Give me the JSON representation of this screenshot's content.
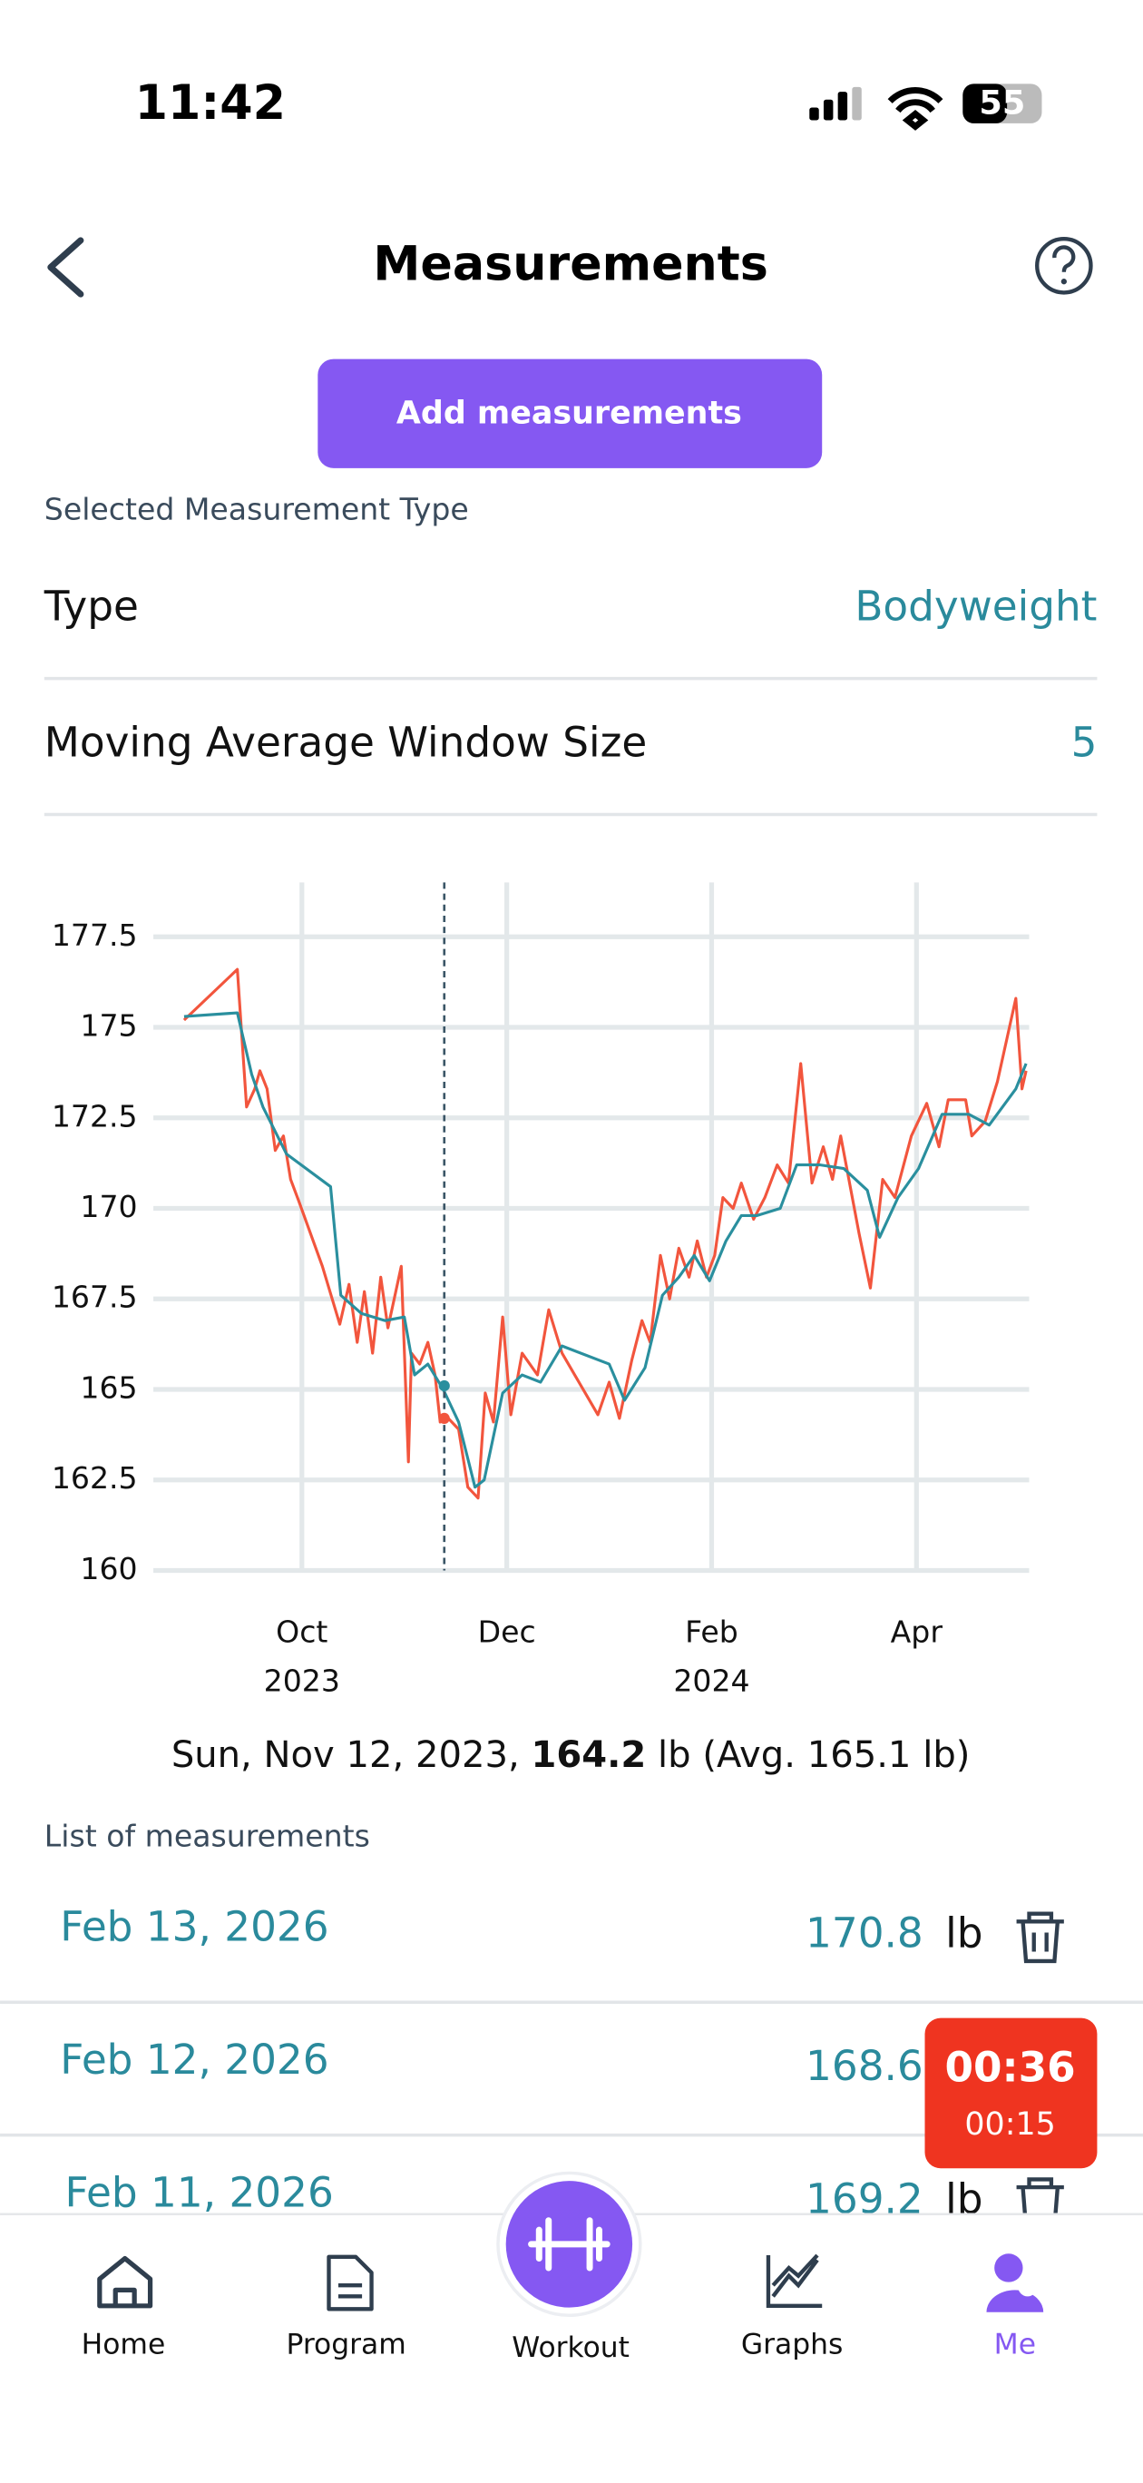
{
  "status_bar": {
    "time": "11:42",
    "battery": "55"
  },
  "header": {
    "title": "Measurements"
  },
  "add_button": "Add measurements",
  "selected_label": "Selected Measurement Type",
  "type_row": {
    "label": "Type",
    "value": "Bodyweight"
  },
  "window_row": {
    "label": "Moving Average Window Size",
    "value": 5
  },
  "chart_data": {
    "type": "line",
    "xlim": [
      8.55,
      17.1
    ],
    "ylim": [
      160,
      179
    ],
    "xticks": [
      {
        "value": 10,
        "label": "Oct",
        "year": "2023"
      },
      {
        "value": 12,
        "label": "Dec"
      },
      {
        "value": 14,
        "label": "Feb",
        "year": "2024"
      },
      {
        "value": 16,
        "label": "Apr"
      }
    ],
    "yticks": [
      160,
      162.5,
      165,
      167.5,
      170,
      172.5,
      175,
      177.5
    ],
    "grid": true,
    "cursor_x": 11.39,
    "series": [
      {
        "color": "#f2553d",
        "x": [
          8.85,
          9.37,
          9.46,
          9.54,
          9.59,
          9.66,
          9.74,
          9.82,
          9.89,
          9.97,
          10.2,
          10.37,
          10.46,
          10.54,
          10.61,
          10.69,
          10.77,
          10.84,
          10.97,
          11.04,
          11.07,
          11.15,
          11.23,
          11.3,
          11.35,
          11.43,
          11.53,
          11.62,
          11.72,
          11.79,
          11.87,
          11.96,
          12.04,
          12.15,
          12.3,
          12.41,
          12.54,
          12.89,
          13.0,
          13.1,
          13.22,
          13.32,
          13.4,
          13.5,
          13.59,
          13.68,
          13.78,
          13.86,
          13.95,
          14.03,
          14.11,
          14.21,
          14.29,
          14.41,
          14.52,
          14.64,
          14.75,
          14.87,
          14.98,
          15.09,
          15.18,
          15.26,
          15.44,
          15.55,
          15.67,
          15.79,
          15.95,
          16.1,
          16.22,
          16.31,
          16.48,
          16.54,
          16.67,
          16.79,
          16.97,
          17.03,
          17.07
        ],
        "values": [
          175.2,
          176.6,
          172.8,
          173.3,
          173.8,
          173.3,
          171.6,
          172.0,
          170.8,
          170.2,
          168.4,
          166.8,
          167.9,
          166.3,
          167.7,
          166.0,
          168.1,
          166.7,
          168.4,
          163.0,
          166.0,
          165.7,
          166.3,
          165.4,
          164.1,
          164.2,
          163.9,
          162.3,
          162.0,
          164.9,
          164.1,
          167.0,
          164.3,
          166.0,
          165.4,
          167.2,
          166.0,
          164.3,
          165.2,
          164.2,
          165.8,
          166.9,
          166.3,
          168.7,
          167.5,
          168.9,
          168.1,
          169.1,
          168.1,
          168.7,
          170.3,
          170.0,
          170.7,
          169.7,
          170.3,
          171.2,
          170.7,
          174.0,
          170.7,
          171.7,
          170.8,
          172.0,
          169.3,
          167.8,
          170.8,
          170.3,
          172.0,
          172.9,
          171.7,
          173.0,
          173.0,
          172.0,
          172.4,
          173.5,
          175.8,
          173.3,
          173.8
        ]
      },
      {
        "color": "#2a8f9e",
        "x": [
          8.85,
          9.37,
          9.51,
          9.62,
          9.85,
          10.28,
          10.38,
          10.58,
          10.81,
          11.0,
          11.1,
          11.23,
          11.38,
          11.53,
          11.69,
          11.78,
          11.96,
          12.15,
          12.33,
          12.54,
          13.0,
          13.15,
          13.35,
          13.52,
          13.68,
          13.83,
          13.98,
          14.14,
          14.29,
          14.44,
          14.67,
          14.83,
          15.06,
          15.29,
          15.52,
          15.64,
          15.82,
          16.02,
          16.25,
          16.51,
          16.71,
          16.97,
          17.07
        ],
        "values": [
          175.3,
          175.4,
          173.7,
          172.8,
          171.5,
          170.6,
          167.6,
          167.1,
          166.9,
          167.0,
          165.4,
          165.7,
          165.0,
          164.1,
          162.3,
          162.5,
          164.9,
          165.4,
          165.2,
          166.2,
          165.7,
          164.7,
          165.6,
          167.6,
          168.1,
          168.7,
          168.0,
          169.1,
          169.8,
          169.8,
          170.0,
          171.2,
          171.2,
          171.1,
          170.5,
          169.2,
          170.3,
          171.1,
          172.6,
          172.6,
          172.3,
          173.3,
          174.0
        ]
      }
    ]
  },
  "selection": {
    "date": "Sun, Nov 12, 2023,",
    "value": 164.2,
    "unit": "lb",
    "avg_prefix": "(Avg.",
    "average": 165.1,
    "avg_unit": "lb)"
  },
  "list_label": "List of measurements",
  "list": [
    {
      "date": "Feb 13, 2026",
      "value": 170.8,
      "unit": "lb"
    },
    {
      "date": "Feb 12, 2026",
      "value": 168.6
    },
    {
      "date": "Feb 11, 2026",
      "value": 169.2,
      "unit": "lb"
    }
  ],
  "timer": {
    "main": "00:36",
    "sub": "00:15"
  },
  "tabs": [
    "Home",
    "Program",
    "Workout",
    "Graphs",
    "Me"
  ]
}
